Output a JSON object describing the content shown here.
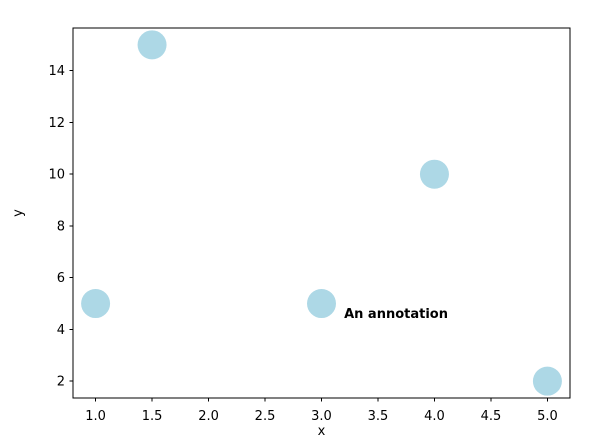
{
  "chart_data": {
    "type": "scatter",
    "title": "",
    "xlabel": "x",
    "ylabel": "y",
    "points": {
      "x": [
        1.0,
        1.5,
        3.0,
        4.0,
        5.0
      ],
      "y": [
        5,
        15,
        5,
        10,
        2
      ]
    },
    "xlim": [
      0.8,
      5.2
    ],
    "ylim": [
      1.35,
      15.65
    ],
    "xticks": [
      1.0,
      1.5,
      2.0,
      2.5,
      3.0,
      3.5,
      4.0,
      4.5,
      5.0
    ],
    "xtick_labels": [
      "1.0",
      "1.5",
      "2.0",
      "2.5",
      "3.0",
      "3.5",
      "4.0",
      "4.5",
      "5.0"
    ],
    "yticks": [
      2,
      4,
      6,
      8,
      10,
      12,
      14
    ],
    "ytick_labels": [
      "2",
      "4",
      "6",
      "8",
      "10",
      "12",
      "14"
    ],
    "marker_color": "#ADD8E6",
    "axis_color": "#000000",
    "background_color": "#FFFFFF",
    "grid": false,
    "legend_position": null,
    "annotation": {
      "text": "An annotation",
      "x": 3.2,
      "y": 4.45,
      "bold": true
    }
  }
}
